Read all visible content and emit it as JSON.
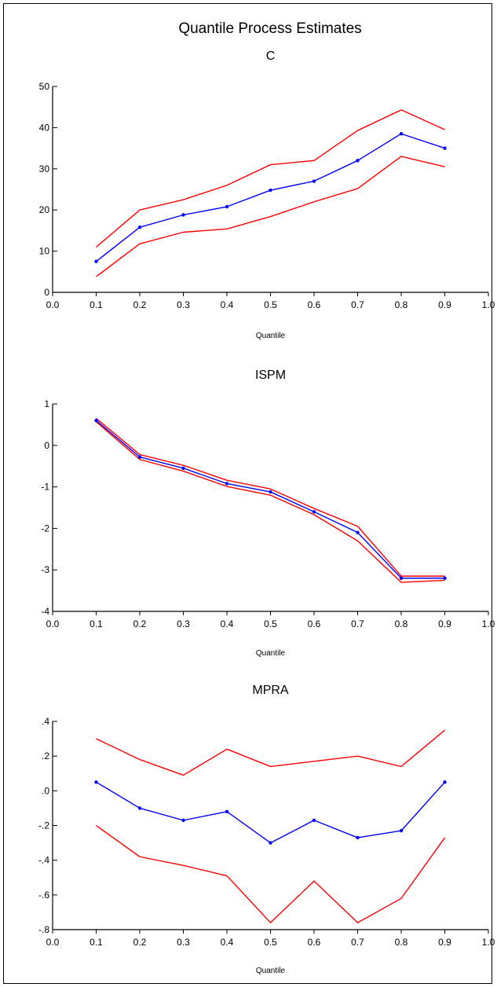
{
  "page": {
    "title": "Quantile Process Estimates"
  },
  "colors": {
    "estimate": "#0000ff",
    "bounds": "#ff0000",
    "axis": "#000000"
  },
  "chart_data": [
    {
      "type": "line",
      "title": "C",
      "xlabel": "Quantile",
      "ylabel": "",
      "xlim": [
        0.0,
        1.0
      ],
      "ylim": [
        0,
        50
      ],
      "xticks": [
        "0.0",
        "0.1",
        "0.2",
        "0.3",
        "0.4",
        "0.5",
        "0.6",
        "0.7",
        "0.8",
        "0.9",
        "1.0"
      ],
      "yticks": [
        {
          "v": 0,
          "label": "0"
        },
        {
          "v": 10,
          "label": "10"
        },
        {
          "v": 20,
          "label": "20"
        },
        {
          "v": 30,
          "label": "30"
        },
        {
          "v": 40,
          "label": "40"
        },
        {
          "v": 50,
          "label": "50"
        }
      ],
      "x": [
        0.1,
        0.2,
        0.3,
        0.4,
        0.5,
        0.6,
        0.7,
        0.8,
        0.9
      ],
      "series": [
        {
          "role": "estimate",
          "values": [
            7.5,
            15.8,
            18.8,
            20.8,
            24.8,
            27.0,
            32.0,
            38.5,
            35.0
          ],
          "markers": true
        },
        {
          "role": "upper",
          "values": [
            11.0,
            20.0,
            22.5,
            26.0,
            31.0,
            32.0,
            39.3,
            44.3,
            39.5
          ],
          "markers": false
        },
        {
          "role": "lower",
          "values": [
            3.8,
            11.8,
            14.6,
            15.4,
            18.4,
            22.0,
            25.2,
            33.0,
            30.5
          ],
          "markers": false
        }
      ]
    },
    {
      "type": "line",
      "title": "ISPM",
      "xlabel": "Quantile",
      "ylabel": "",
      "xlim": [
        0.0,
        1.0
      ],
      "ylim": [
        -4,
        1
      ],
      "xticks": [
        "0.0",
        "0.1",
        "0.2",
        "0.3",
        "0.4",
        "0.5",
        "0.6",
        "0.7",
        "0.8",
        "0.9",
        "1.0"
      ],
      "yticks": [
        {
          "v": -4,
          "label": "-4"
        },
        {
          "v": -3,
          "label": "-3"
        },
        {
          "v": -2,
          "label": "-2"
        },
        {
          "v": -1,
          "label": "-1"
        },
        {
          "v": 0,
          "label": "0"
        },
        {
          "v": 1,
          "label": "1"
        }
      ],
      "x": [
        0.1,
        0.2,
        0.3,
        0.4,
        0.5,
        0.6,
        0.7,
        0.8,
        0.9
      ],
      "series": [
        {
          "role": "estimate",
          "values": [
            0.6,
            -0.28,
            -0.55,
            -0.92,
            -1.12,
            -1.6,
            -2.1,
            -3.2,
            -3.2
          ],
          "markers": true
        },
        {
          "role": "upper",
          "values": [
            0.65,
            -0.22,
            -0.48,
            -0.84,
            -1.05,
            -1.52,
            -1.95,
            -3.15,
            -3.15
          ],
          "markers": false
        },
        {
          "role": "lower",
          "values": [
            0.57,
            -0.34,
            -0.62,
            -0.99,
            -1.2,
            -1.67,
            -2.3,
            -3.3,
            -3.25
          ],
          "markers": false
        }
      ]
    },
    {
      "type": "line",
      "title": "MPRA",
      "xlabel": "Quantile",
      "ylabel": "",
      "xlim": [
        0.0,
        1.0
      ],
      "ylim": [
        -0.8,
        0.4
      ],
      "xticks": [
        "0.0",
        "0.1",
        "0.2",
        "0.3",
        "0.4",
        "0.5",
        "0.6",
        "0.7",
        "0.8",
        "0.9",
        "1.0"
      ],
      "yticks": [
        {
          "v": -0.8,
          "label": "-.8"
        },
        {
          "v": -0.6,
          "label": "-.6"
        },
        {
          "v": -0.4,
          "label": "-.4"
        },
        {
          "v": -0.2,
          "label": "-.2"
        },
        {
          "v": 0.0,
          "label": ".0"
        },
        {
          "v": 0.2,
          "label": ".2"
        },
        {
          "v": 0.4,
          "label": ".4"
        }
      ],
      "x": [
        0.1,
        0.2,
        0.3,
        0.4,
        0.5,
        0.6,
        0.7,
        0.8,
        0.9
      ],
      "series": [
        {
          "role": "estimate",
          "values": [
            0.05,
            -0.1,
            -0.17,
            -0.12,
            -0.3,
            -0.17,
            -0.27,
            -0.23,
            0.05
          ],
          "markers": true
        },
        {
          "role": "upper",
          "values": [
            0.3,
            0.18,
            0.09,
            0.24,
            0.14,
            0.17,
            0.2,
            0.14,
            0.35
          ],
          "markers": false
        },
        {
          "role": "lower",
          "values": [
            -0.2,
            -0.38,
            -0.43,
            -0.49,
            -0.76,
            -0.52,
            -0.76,
            -0.62,
            -0.27
          ],
          "markers": false
        }
      ]
    }
  ]
}
